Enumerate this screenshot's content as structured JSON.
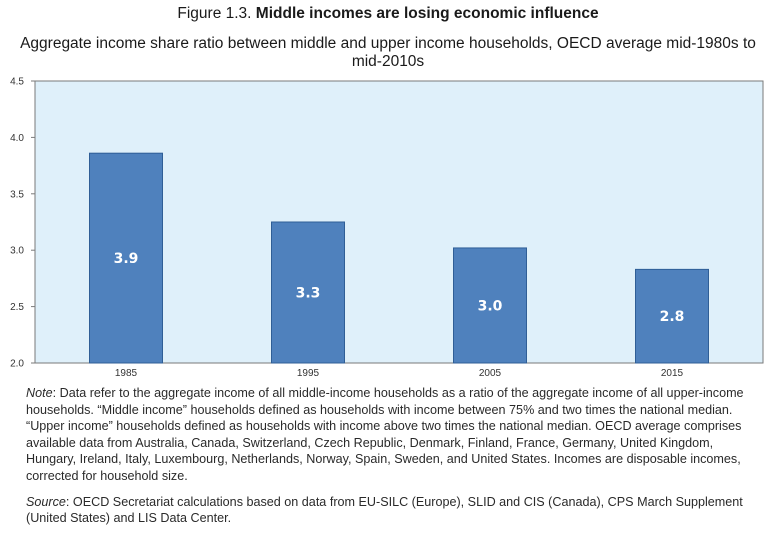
{
  "figure": {
    "label": "Figure 1.3.",
    "title": "Middle incomes are losing economic influence",
    "subtitle": "Aggregate income share ratio between middle and upper income households, OECD average mid-1980s to mid-2010s"
  },
  "colors": {
    "plot_background": "#dff0fa",
    "bar_fill": "#4f81bd",
    "bar_stroke": "#2f5e96",
    "axis": "#7a7a7a"
  },
  "chart_data": {
    "type": "bar",
    "title": "Aggregate income share ratio between middle and upper income households, OECD average mid-1980s to mid-2010s",
    "xlabel": "",
    "ylabel": "",
    "categories": [
      "1985",
      "1995",
      "2005",
      "2015"
    ],
    "values": [
      3.86,
      3.25,
      3.02,
      2.83
    ],
    "data_labels": [
      "3.9",
      "3.3",
      "3.0",
      "2.8"
    ],
    "ylim": [
      2.0,
      4.5
    ],
    "yticks": [
      2.0,
      2.5,
      3.0,
      3.5,
      4.0,
      4.5
    ],
    "ytick_labels": [
      "2.0",
      "2.5",
      "3.0",
      "3.5",
      "4.0",
      "4.5"
    ],
    "grid": false,
    "legend": "none"
  },
  "note": {
    "label": "Note",
    "text": ": Data refer to the aggregate income of all middle-income households as a ratio of the aggregate income of all upper-income households. “Middle income” households defined as households with income between 75% and two times the national median. “Upper income” households defined as households with income above two times the national median. OECD average comprises available data from Australia, Canada, Switzerland, Czech Republic, Denmark, Finland, France, Germany, United Kingdom, Hungary, Ireland, Italy, Luxembourg, Netherlands, Norway, Spain, Sweden, and United States. Incomes are disposable incomes, corrected for household size."
  },
  "source": {
    "label": "Source",
    "text": ": OECD Secretariat calculations based on data from EU-SILC (Europe), SLID and CIS (Canada), CPS March Supplement (United States) and LIS Data Center."
  }
}
